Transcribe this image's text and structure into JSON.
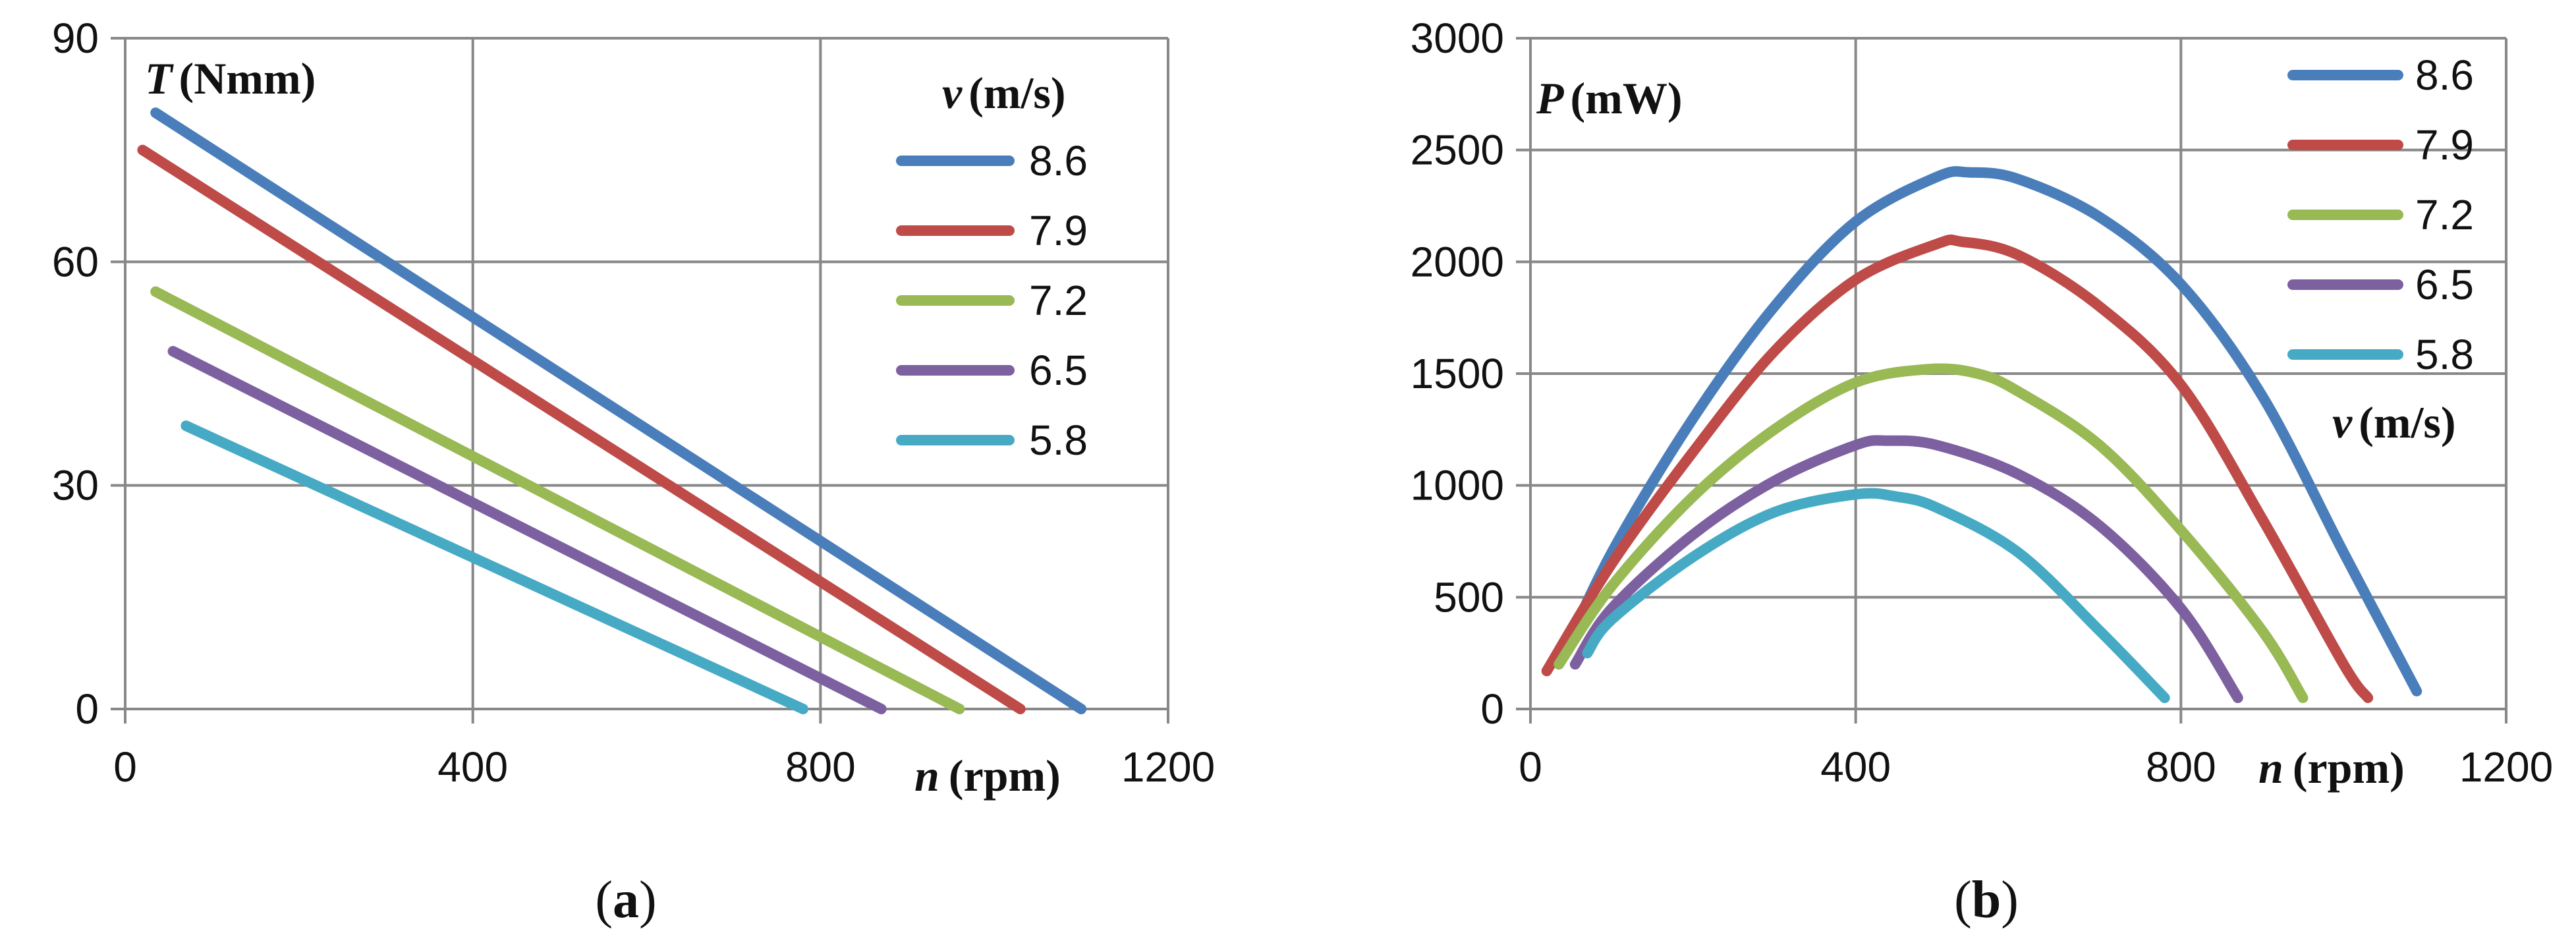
{
  "figure": {
    "panels": [
      "a",
      "b"
    ]
  },
  "chart_data": [
    {
      "type": "line",
      "panel_caption": "a",
      "ylabel_symbol": "T",
      "ylabel_unit": "(Nmm)",
      "xlabel_symbol": "n",
      "xlabel_unit": "(rpm)",
      "legend_symbol": "v",
      "legend_unit": "(m/s)",
      "legend_position": "top-right",
      "xlim": [
        0,
        1200
      ],
      "ylim": [
        0,
        90
      ],
      "xticks": [
        "0",
        "400",
        "800",
        "1200"
      ],
      "yticks": [
        "0",
        "30",
        "60",
        "90"
      ],
      "grid": true,
      "series": [
        {
          "name": "8.6",
          "color": "#4a7ebb",
          "x": [
            35,
            1100
          ],
          "y": [
            80,
            0
          ]
        },
        {
          "name": "7.9",
          "color": "#be4b48",
          "x": [
            20,
            1030
          ],
          "y": [
            75,
            0
          ]
        },
        {
          "name": "7.2",
          "color": "#98b954",
          "x": [
            35,
            960
          ],
          "y": [
            56,
            0
          ]
        },
        {
          "name": "6.5",
          "color": "#7d60a0",
          "x": [
            55,
            870
          ],
          "y": [
            48,
            0
          ]
        },
        {
          "name": "5.8",
          "color": "#46aac5",
          "x": [
            70,
            780
          ],
          "y": [
            38,
            0
          ]
        }
      ]
    },
    {
      "type": "line",
      "panel_caption": "b",
      "ylabel_symbol": "P",
      "ylabel_unit": "(mW)",
      "xlabel_symbol": "n",
      "xlabel_unit": "(rpm)",
      "legend_symbol": "v",
      "legend_unit": "(m/s)",
      "legend_position": "top-right",
      "xlim": [
        0,
        1200
      ],
      "ylim": [
        0,
        3000
      ],
      "xticks": [
        "0",
        "400",
        "800",
        "1200"
      ],
      "yticks": [
        "0",
        "500",
        "1000",
        "1500",
        "2000",
        "2500",
        "3000"
      ],
      "grid": true,
      "series": [
        {
          "name": "8.6",
          "color": "#4a7ebb",
          "x": [
            35,
            100,
            200,
            300,
            400,
            500,
            540,
            600,
            700,
            800,
            900,
            1000,
            1090
          ],
          "y": [
            200,
            700,
            1300,
            1800,
            2180,
            2380,
            2400,
            2370,
            2200,
            1900,
            1400,
            700,
            80
          ]
        },
        {
          "name": "7.9",
          "color": "#be4b48",
          "x": [
            20,
            100,
            200,
            300,
            400,
            500,
            530,
            600,
            700,
            800,
            900,
            1000,
            1030
          ],
          "y": [
            170,
            650,
            1150,
            1600,
            1920,
            2080,
            2090,
            2030,
            1800,
            1450,
            850,
            200,
            50
          ]
        },
        {
          "name": "7.2",
          "color": "#98b954",
          "x": [
            35,
            100,
            200,
            300,
            400,
            490,
            550,
            600,
            700,
            800,
            900,
            950
          ],
          "y": [
            200,
            550,
            950,
            1250,
            1460,
            1520,
            1500,
            1420,
            1180,
            800,
            350,
            50
          ]
        },
        {
          "name": "6.5",
          "color": "#7d60a0",
          "x": [
            55,
            100,
            200,
            300,
            400,
            440,
            500,
            600,
            700,
            800,
            870
          ],
          "y": [
            200,
            450,
            780,
            1020,
            1180,
            1200,
            1180,
            1050,
            820,
            450,
            50
          ]
        },
        {
          "name": "5.8",
          "color": "#46aac5",
          "x": [
            70,
            100,
            200,
            300,
            400,
            450,
            500,
            600,
            700,
            780
          ],
          "y": [
            250,
            400,
            680,
            880,
            960,
            950,
            900,
            700,
            350,
            50
          ]
        }
      ]
    }
  ]
}
